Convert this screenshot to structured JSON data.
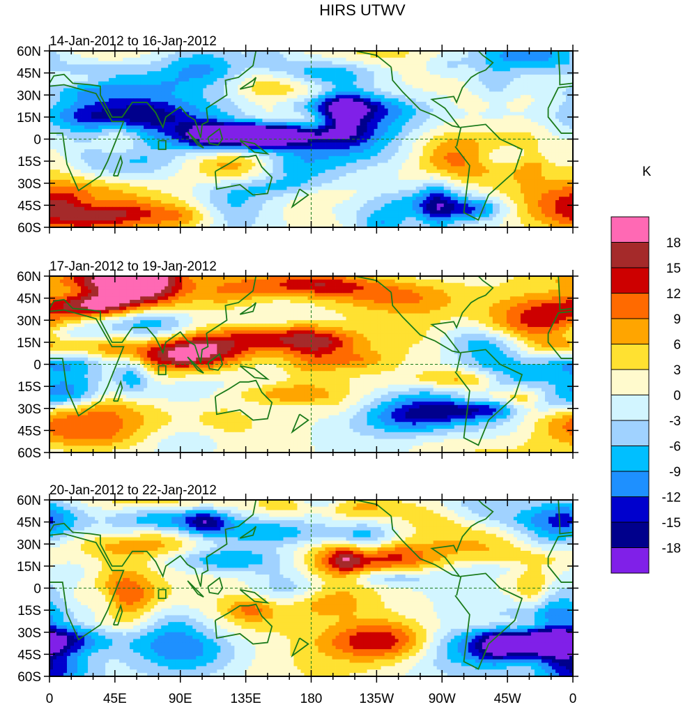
{
  "title": "HIRS UTWV",
  "panels": [
    {
      "label": "14-Jan-2012 to 16-Jan-2012",
      "seed": 11
    },
    {
      "label": "17-Jan-2012 to 19-Jan-2012",
      "seed": 23
    },
    {
      "label": "20-Jan-2012 to 22-Jan-2012",
      "seed": 37
    }
  ],
  "y_ticks": [
    "60N",
    "45N",
    "30N",
    "15N",
    "0",
    "15S",
    "30S",
    "45S",
    "60S"
  ],
  "x_ticks": [
    "0",
    "45E",
    "90E",
    "135E",
    "180",
    "135W",
    "90W",
    "45W",
    "0"
  ],
  "lat_range": [
    -60,
    60
  ],
  "lon_range": [
    0,
    360
  ],
  "colorbar": {
    "unit": "K",
    "levels": [
      "18",
      "15",
      "12",
      "9",
      "6",
      "3",
      "0",
      "-3",
      "-6",
      "-9",
      "-12",
      "-15",
      "-18"
    ],
    "colors": [
      "#ff69b4",
      "#a52a2a",
      "#cd0000",
      "#ff6a00",
      "#ffa500",
      "#ffe131",
      "#fffacd",
      "#d2f5ff",
      "#a0d2ff",
      "#00bfff",
      "#1e90ff",
      "#0000cd",
      "#00008c",
      "#8020e8"
    ]
  },
  "coast_color": "#1a7a1a"
}
